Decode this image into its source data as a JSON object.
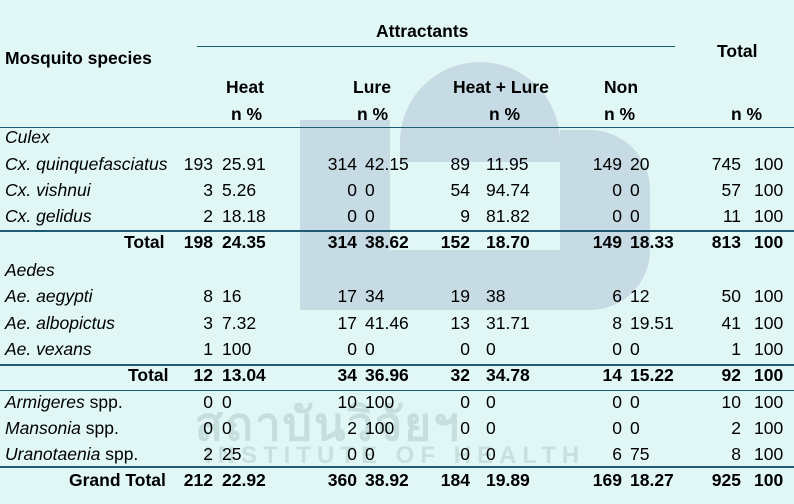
{
  "header": {
    "species_label": "Mosquito species",
    "attractants_label": "Attractants",
    "total_label": "Total",
    "groups": [
      "Heat",
      "Lure",
      "Heat + Lure",
      "Non"
    ],
    "unit_label": "n %"
  },
  "sections": [
    {
      "name": "Culex",
      "rows": [
        {
          "species": "Cx. quinquefasciatus",
          "suffix": "",
          "values": [
            "193",
            "25.91",
            "314",
            "42.15",
            "89",
            "11.95",
            "149",
            "20",
            "745",
            "100"
          ]
        },
        {
          "species": "Cx. vishnui",
          "suffix": "",
          "values": [
            "3",
            "5.26",
            "0",
            "0",
            "54",
            "94.74",
            "0",
            "0",
            "57",
            "100"
          ]
        },
        {
          "species": "Cx. gelidus",
          "suffix": "",
          "values": [
            "2",
            "18.18",
            "0",
            "0",
            "9",
            "81.82",
            "0",
            "0",
            "11",
            "100"
          ]
        }
      ],
      "total": {
        "label": "Total",
        "values": [
          "198",
          "24.35",
          "314",
          "38.62",
          "152",
          "18.70",
          "149",
          "18.33",
          "813",
          "100"
        ]
      }
    },
    {
      "name": "Aedes",
      "rows": [
        {
          "species": "Ae. aegypti",
          "suffix": "",
          "values": [
            "8",
            "16",
            "17",
            "34",
            "19",
            "38",
            "6",
            "12",
            "50",
            "100"
          ]
        },
        {
          "species": "Ae. albopictus",
          "suffix": "",
          "values": [
            "3",
            "7.32",
            "17",
            "41.46",
            "13",
            "31.71",
            "8",
            "19.51",
            "41",
            "100"
          ]
        },
        {
          "species": "Ae. vexans",
          "suffix": "",
          "values": [
            "1",
            "100",
            "0",
            "0",
            "0",
            "0",
            "0",
            "0",
            "1",
            "100"
          ]
        }
      ],
      "total": {
        "label": "Total",
        "values": [
          "12",
          "13.04",
          "34",
          "36.96",
          "32",
          "34.78",
          "14",
          "15.22",
          "92",
          "100"
        ]
      }
    },
    {
      "name": "",
      "rows": [
        {
          "species": "Armigeres",
          "suffix": " spp.",
          "values": [
            "0",
            "0",
            "10",
            "100",
            "0",
            "0",
            "0",
            "0",
            "10",
            "100"
          ]
        },
        {
          "species": "Mansonia",
          "suffix": " spp.",
          "values": [
            "0",
            "0",
            "2",
            "100",
            "0",
            "0",
            "0",
            "0",
            "2",
            "100"
          ]
        },
        {
          "species": "Uranotaenia",
          "suffix": " spp.",
          "values": [
            "2",
            "25",
            "0",
            "0",
            "0",
            "0",
            "6",
            "75",
            "8",
            "100"
          ]
        }
      ]
    }
  ],
  "grand_total": {
    "label": "Grand Total",
    "values": [
      "212",
      "22.92",
      "360",
      "38.92",
      "184",
      "19.89",
      "169",
      "18.27",
      "925",
      "100"
    ]
  }
}
